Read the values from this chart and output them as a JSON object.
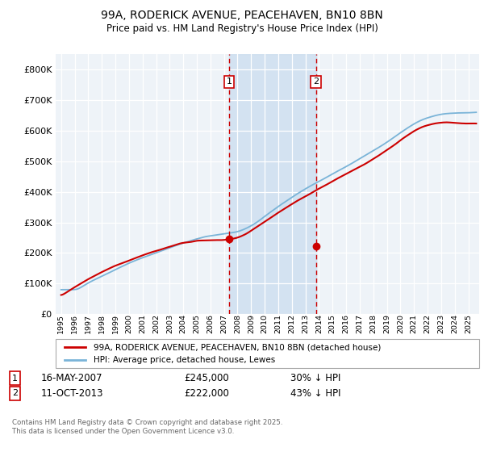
{
  "title": "99A, RODERICK AVENUE, PEACEHAVEN, BN10 8BN",
  "subtitle": "Price paid vs. HM Land Registry's House Price Index (HPI)",
  "hpi_color": "#7ab4d8",
  "price_color": "#cc0000",
  "bg_color": "#ffffff",
  "plot_bg_color": "#eef3f8",
  "grid_color": "#ffffff",
  "highlight_color": "#cfe0f0",
  "dashed_color": "#cc0000",
  "ylim": [
    0,
    850000
  ],
  "yticks": [
    0,
    100000,
    200000,
    300000,
    400000,
    500000,
    600000,
    700000,
    800000
  ],
  "ytick_labels": [
    "£0",
    "£100K",
    "£200K",
    "£300K",
    "£400K",
    "£500K",
    "£600K",
    "£700K",
    "£800K"
  ],
  "xlim_start": 1994.6,
  "xlim_end": 2025.8,
  "marker1_x": 2007.37,
  "marker1_y": 245000,
  "marker1_label": "1",
  "marker1_date": "16-MAY-2007",
  "marker1_price": "£245,000",
  "marker1_hpi": "30% ↓ HPI",
  "marker2_x": 2013.78,
  "marker2_y": 222000,
  "marker2_label": "2",
  "marker2_date": "11-OCT-2013",
  "marker2_price": "£222,000",
  "marker2_hpi": "43% ↓ HPI",
  "legend_line1": "99A, RODERICK AVENUE, PEACEHAVEN, BN10 8BN (detached house)",
  "legend_line2": "HPI: Average price, detached house, Lewes",
  "footer": "Contains HM Land Registry data © Crown copyright and database right 2025.\nThis data is licensed under the Open Government Licence v3.0."
}
